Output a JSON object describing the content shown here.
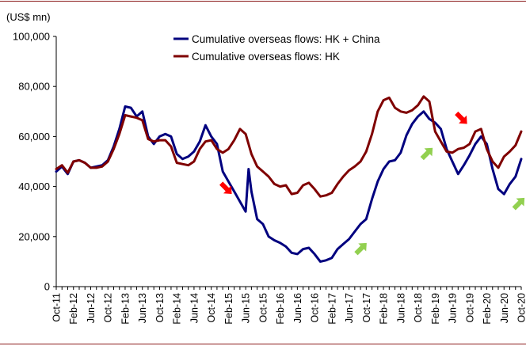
{
  "chart_data": {
    "type": "line",
    "ylabel": "(US$ mn)",
    "ylim": [
      0,
      100000
    ],
    "yticks": [
      0,
      20000,
      40000,
      60000,
      80000,
      100000
    ],
    "ytick_labels": [
      "0",
      "20,000",
      "40,000",
      "60,000",
      "80,000",
      "100,000"
    ],
    "x_start": "Oct-11",
    "x_end": "Oct-20",
    "xtick_labels": [
      "Oct-11",
      "Feb-12",
      "Jun-12",
      "Oct-12",
      "Feb-13",
      "Jun-13",
      "Oct-13",
      "Feb-14",
      "Jun-14",
      "Oct-14",
      "Feb-15",
      "Jun-15",
      "Oct-15",
      "Feb-16",
      "Jun-16",
      "Oct-16",
      "Feb-17",
      "Jun-17",
      "Oct-17",
      "Feb-18",
      "Jun-18",
      "Oct-18",
      "Feb-19",
      "Jun-19",
      "Oct-19",
      "Feb-20",
      "Jun-20",
      "Oct-20"
    ],
    "legend_position": "top-center",
    "series": [
      {
        "name": "Cumulative overseas flows: HK + China",
        "color": "#00007f",
        "points": [
          [
            0,
            46000
          ],
          [
            1,
            48000
          ],
          [
            2,
            45000
          ],
          [
            3,
            50000
          ],
          [
            4,
            50500
          ],
          [
            5,
            49500
          ],
          [
            6,
            47500
          ],
          [
            7,
            48000
          ],
          [
            8,
            48500
          ],
          [
            9,
            50500
          ],
          [
            10,
            56000
          ],
          [
            11,
            63000
          ],
          [
            12,
            72000
          ],
          [
            13,
            71500
          ],
          [
            14,
            68000
          ],
          [
            15,
            70000
          ],
          [
            16,
            60000
          ],
          [
            17,
            57000
          ],
          [
            18,
            60000
          ],
          [
            19,
            61000
          ],
          [
            20,
            60000
          ],
          [
            21,
            53000
          ],
          [
            22,
            51000
          ],
          [
            23,
            52000
          ],
          [
            24,
            54000
          ],
          [
            25,
            58000
          ],
          [
            26,
            64500
          ],
          [
            27,
            60000
          ],
          [
            28,
            57000
          ],
          [
            29,
            46000
          ],
          [
            30,
            42000
          ],
          [
            31,
            38000
          ],
          [
            32,
            34000
          ],
          [
            33,
            30000
          ],
          [
            33.5,
            47000
          ],
          [
            34,
            38000
          ],
          [
            35,
            27000
          ],
          [
            36,
            25000
          ],
          [
            37,
            20000
          ],
          [
            38,
            18500
          ],
          [
            39,
            17500
          ],
          [
            40,
            16000
          ],
          [
            41,
            13500
          ],
          [
            42,
            13000
          ],
          [
            43,
            15000
          ],
          [
            44,
            15500
          ],
          [
            45,
            13000
          ],
          [
            46,
            10000
          ],
          [
            47,
            10500
          ],
          [
            48,
            11500
          ],
          [
            49,
            15000
          ],
          [
            50,
            17000
          ],
          [
            51,
            19000
          ],
          [
            52,
            22000
          ],
          [
            53,
            25000
          ],
          [
            54,
            27000
          ],
          [
            55,
            35000
          ],
          [
            56,
            42000
          ],
          [
            57,
            47000
          ],
          [
            58,
            50000
          ],
          [
            59,
            50500
          ],
          [
            60,
            53500
          ],
          [
            61,
            60500
          ],
          [
            62,
            65000
          ],
          [
            63,
            68000
          ],
          [
            64,
            70000
          ],
          [
            65,
            67000
          ],
          [
            66,
            65500
          ],
          [
            67,
            63000
          ],
          [
            68,
            55000
          ],
          [
            69,
            50000
          ],
          [
            70,
            45000
          ],
          [
            71,
            48500
          ],
          [
            72,
            52500
          ],
          [
            73,
            57000
          ],
          [
            74,
            60000
          ],
          [
            75,
            57000
          ],
          [
            76,
            47000
          ],
          [
            77,
            39000
          ],
          [
            78,
            37000
          ],
          [
            79,
            41000
          ],
          [
            80,
            44000
          ],
          [
            81,
            51000
          ]
        ]
      },
      {
        "name": "Cumulative overseas flows: HK",
        "color": "#7f0000",
        "points": [
          [
            0,
            47000
          ],
          [
            1,
            48500
          ],
          [
            2,
            45500
          ],
          [
            3,
            50000
          ],
          [
            4,
            50500
          ],
          [
            5,
            49500
          ],
          [
            6,
            47500
          ],
          [
            7,
            47500
          ],
          [
            8,
            48000
          ],
          [
            9,
            50000
          ],
          [
            10,
            55000
          ],
          [
            11,
            61000
          ],
          [
            12,
            68500
          ],
          [
            13,
            68000
          ],
          [
            14,
            67500
          ],
          [
            15,
            66500
          ],
          [
            16,
            59000
          ],
          [
            17,
            58000
          ],
          [
            18,
            58500
          ],
          [
            19,
            58500
          ],
          [
            20,
            56000
          ],
          [
            21,
            49500
          ],
          [
            22,
            49000
          ],
          [
            23,
            48500
          ],
          [
            24,
            50000
          ],
          [
            25,
            55000
          ],
          [
            26,
            58000
          ],
          [
            27,
            58500
          ],
          [
            28,
            55000
          ],
          [
            29,
            53500
          ],
          [
            30,
            55000
          ],
          [
            31,
            58500
          ],
          [
            32,
            63000
          ],
          [
            33,
            61000
          ],
          [
            34,
            53000
          ],
          [
            35,
            48000
          ],
          [
            36,
            46000
          ],
          [
            37,
            44000
          ],
          [
            38,
            41000
          ],
          [
            39,
            40000
          ],
          [
            40,
            40500
          ],
          [
            41,
            37000
          ],
          [
            42,
            37500
          ],
          [
            43,
            40500
          ],
          [
            44,
            41500
          ],
          [
            45,
            39000
          ],
          [
            46,
            36000
          ],
          [
            47,
            36500
          ],
          [
            48,
            37500
          ],
          [
            49,
            41000
          ],
          [
            50,
            44000
          ],
          [
            51,
            46500
          ],
          [
            52,
            48000
          ],
          [
            53,
            50000
          ],
          [
            54,
            54000
          ],
          [
            55,
            61000
          ],
          [
            56,
            70000
          ],
          [
            57,
            74500
          ],
          [
            58,
            75500
          ],
          [
            59,
            71500
          ],
          [
            60,
            70000
          ],
          [
            61,
            69500
          ],
          [
            62,
            70500
          ],
          [
            63,
            72500
          ],
          [
            64,
            76000
          ],
          [
            65,
            74000
          ],
          [
            66,
            62000
          ],
          [
            67,
            58000
          ],
          [
            68,
            54000
          ],
          [
            69,
            53500
          ],
          [
            70,
            55000
          ],
          [
            71,
            55500
          ],
          [
            72,
            57000
          ],
          [
            73,
            62000
          ],
          [
            74,
            63000
          ],
          [
            75,
            55000
          ],
          [
            76,
            50000
          ],
          [
            77,
            47500
          ],
          [
            78,
            52000
          ],
          [
            79,
            54000
          ],
          [
            80,
            56500
          ],
          [
            81,
            62000
          ]
        ]
      }
    ],
    "annotations": [
      {
        "type": "arrow",
        "color": "#ff0000",
        "direction": "down-right",
        "x": 29.5,
        "y": 39500
      },
      {
        "type": "arrow",
        "color": "#92d050",
        "direction": "up-right",
        "x": 53,
        "y": 15000
      },
      {
        "type": "arrow",
        "color": "#92d050",
        "direction": "up-right",
        "x": 64.5,
        "y": 53000
      },
      {
        "type": "arrow",
        "color": "#ff0000",
        "direction": "down-right",
        "x": 70.5,
        "y": 67500
      },
      {
        "type": "arrow",
        "color": "#92d050",
        "direction": "up-right",
        "x": 80.5,
        "y": 33000
      }
    ]
  }
}
